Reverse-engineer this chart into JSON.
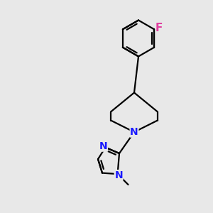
{
  "bg_color": "#e8e8e8",
  "bond_color": "#000000",
  "N_color": "#1a1aff",
  "F_color": "#e040a0",
  "line_width": 1.6,
  "font_size_atom": 10,
  "fig_size": [
    3.0,
    3.0
  ],
  "dpi": 100,
  "xlim": [
    0,
    10
  ],
  "ylim": [
    0,
    10
  ]
}
